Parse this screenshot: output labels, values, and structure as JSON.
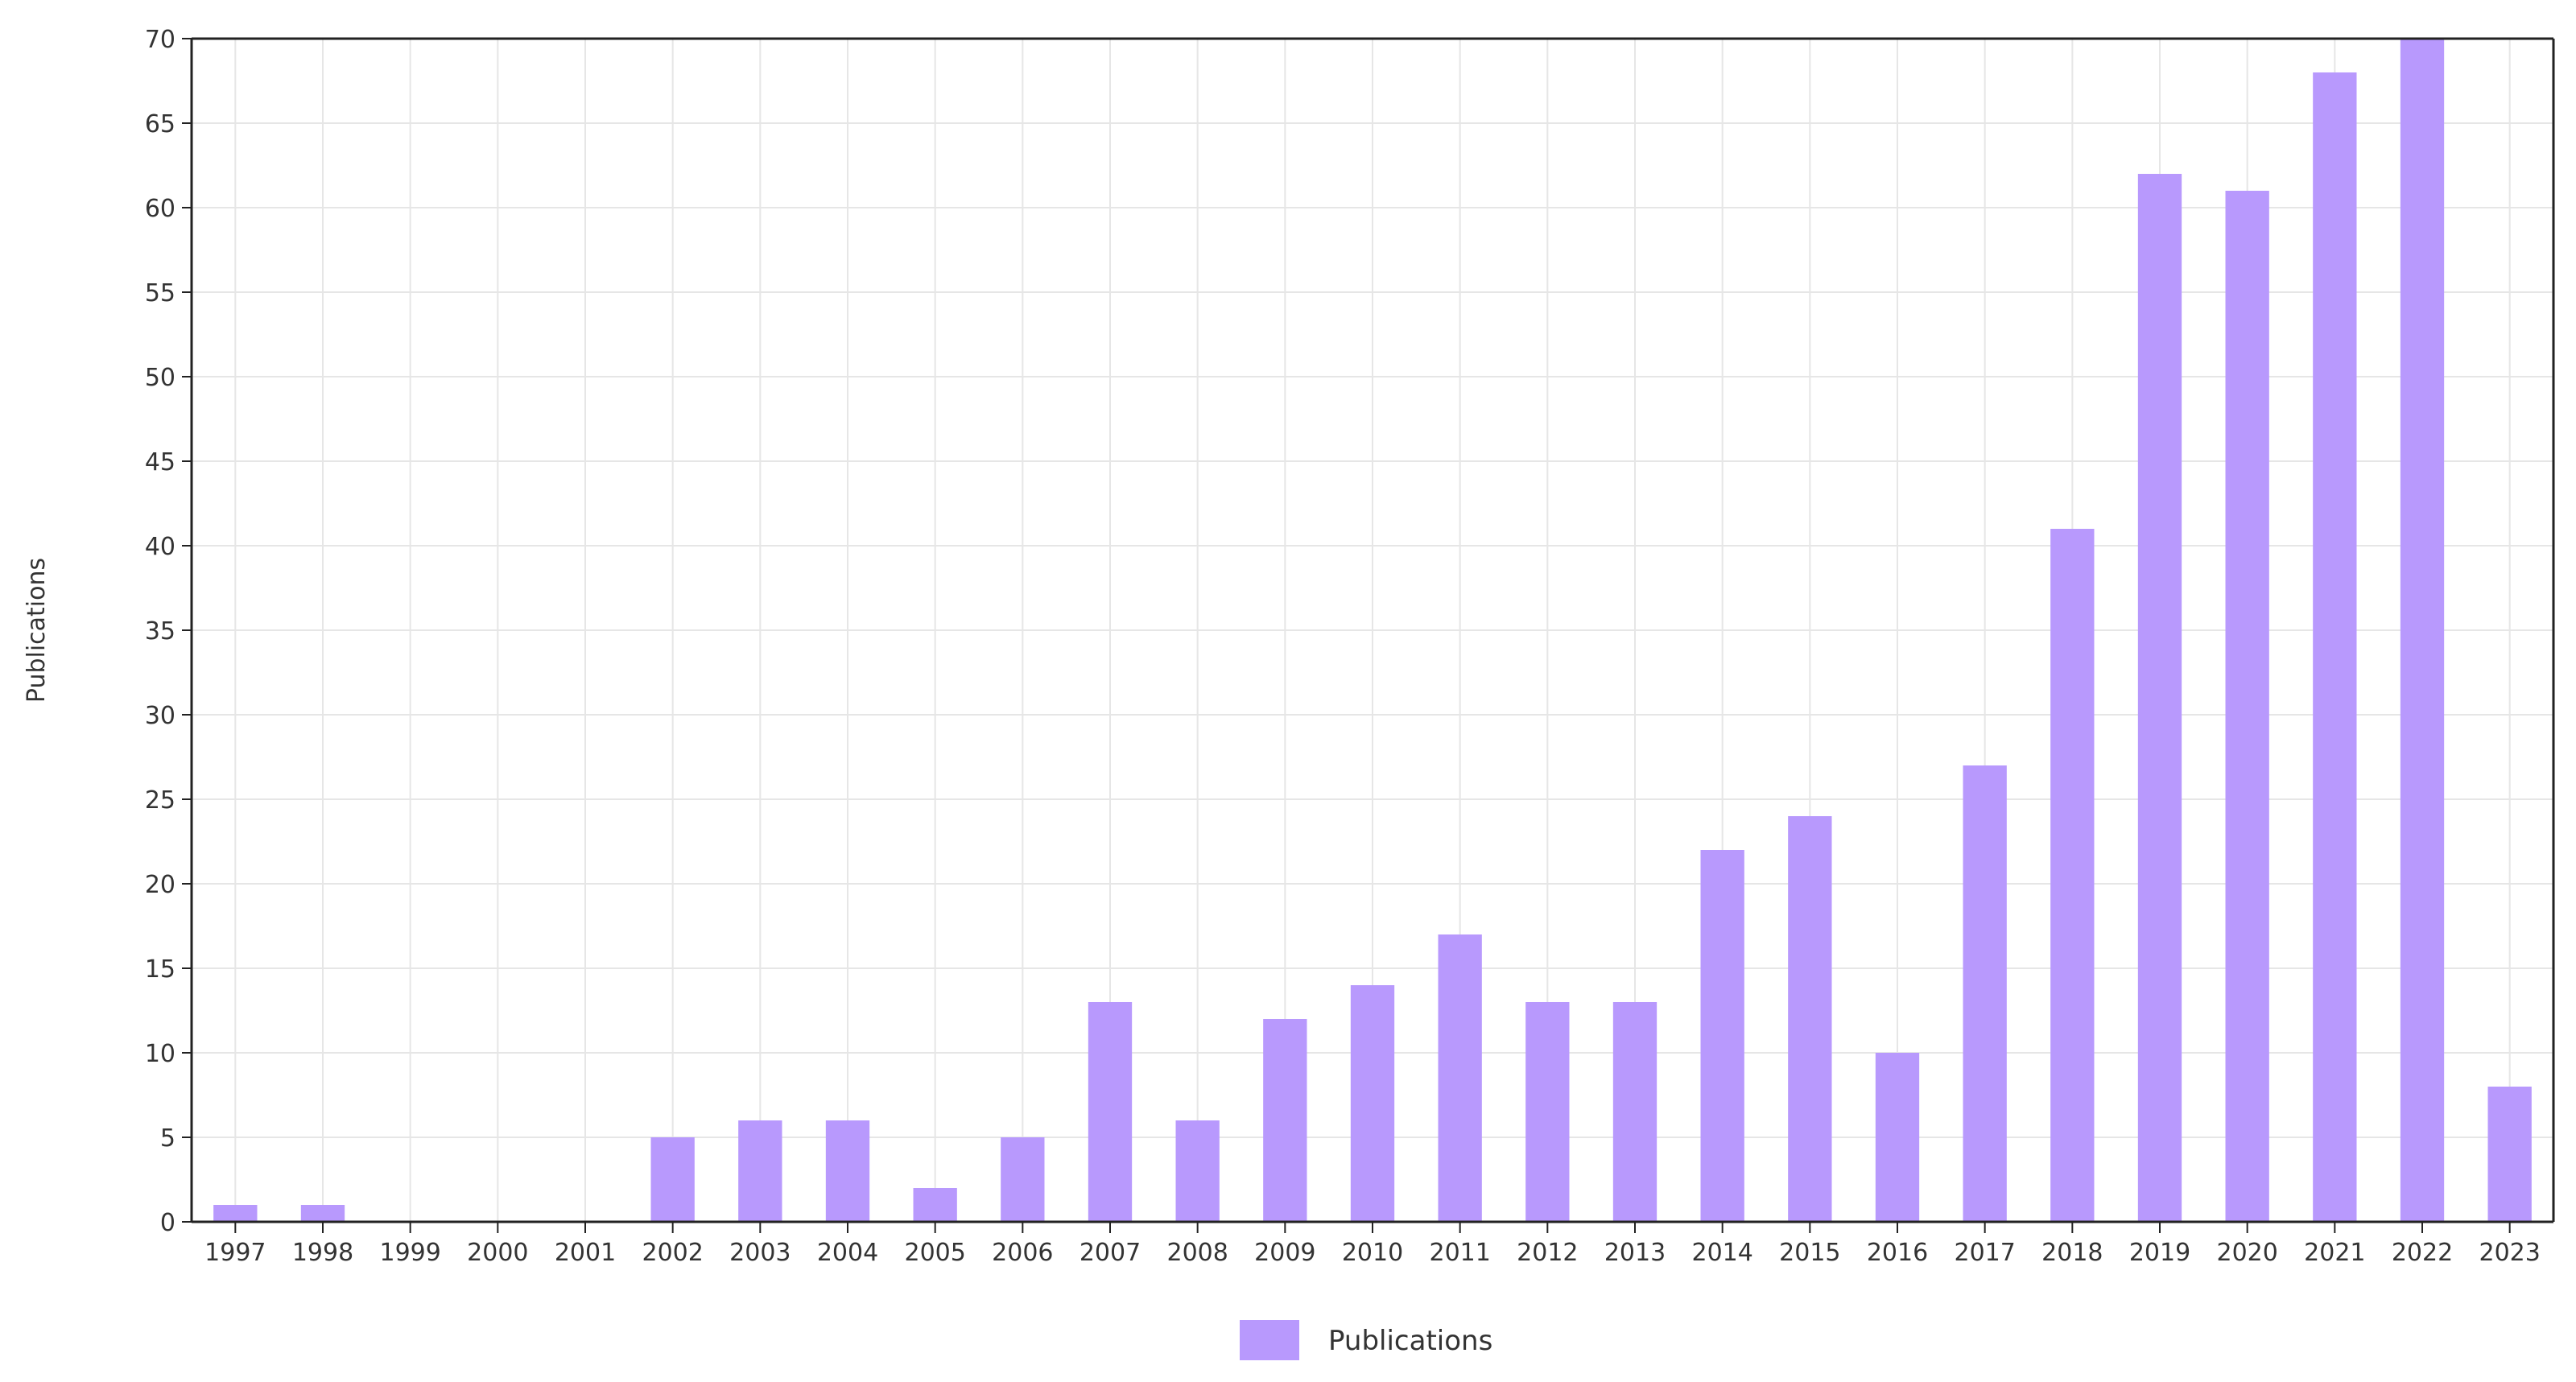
{
  "chart_data": {
    "type": "bar",
    "categories": [
      "1997",
      "1998",
      "1999",
      "2000",
      "2001",
      "2002",
      "2003",
      "2004",
      "2005",
      "2006",
      "2007",
      "2008",
      "2009",
      "2010",
      "2011",
      "2012",
      "2013",
      "2014",
      "2015",
      "2016",
      "2017",
      "2018",
      "2019",
      "2020",
      "2021",
      "2022",
      "2023"
    ],
    "series": [
      {
        "name": "Publications",
        "values": [
          1,
          1,
          0,
          0,
          0,
          5,
          6,
          6,
          2,
          5,
          13,
          6,
          12,
          14,
          17,
          13,
          13,
          22,
          24,
          10,
          27,
          41,
          62,
          61,
          68,
          70,
          8
        ]
      }
    ],
    "ylabel": "Publications",
    "xlabel": "",
    "ylim": [
      0,
      70
    ],
    "yticks": [
      0,
      5,
      10,
      15,
      20,
      25,
      30,
      35,
      40,
      45,
      50,
      55,
      60,
      65,
      70
    ],
    "grid": true,
    "legend_position": "bottom-center",
    "bar_color": "#b899fd"
  }
}
